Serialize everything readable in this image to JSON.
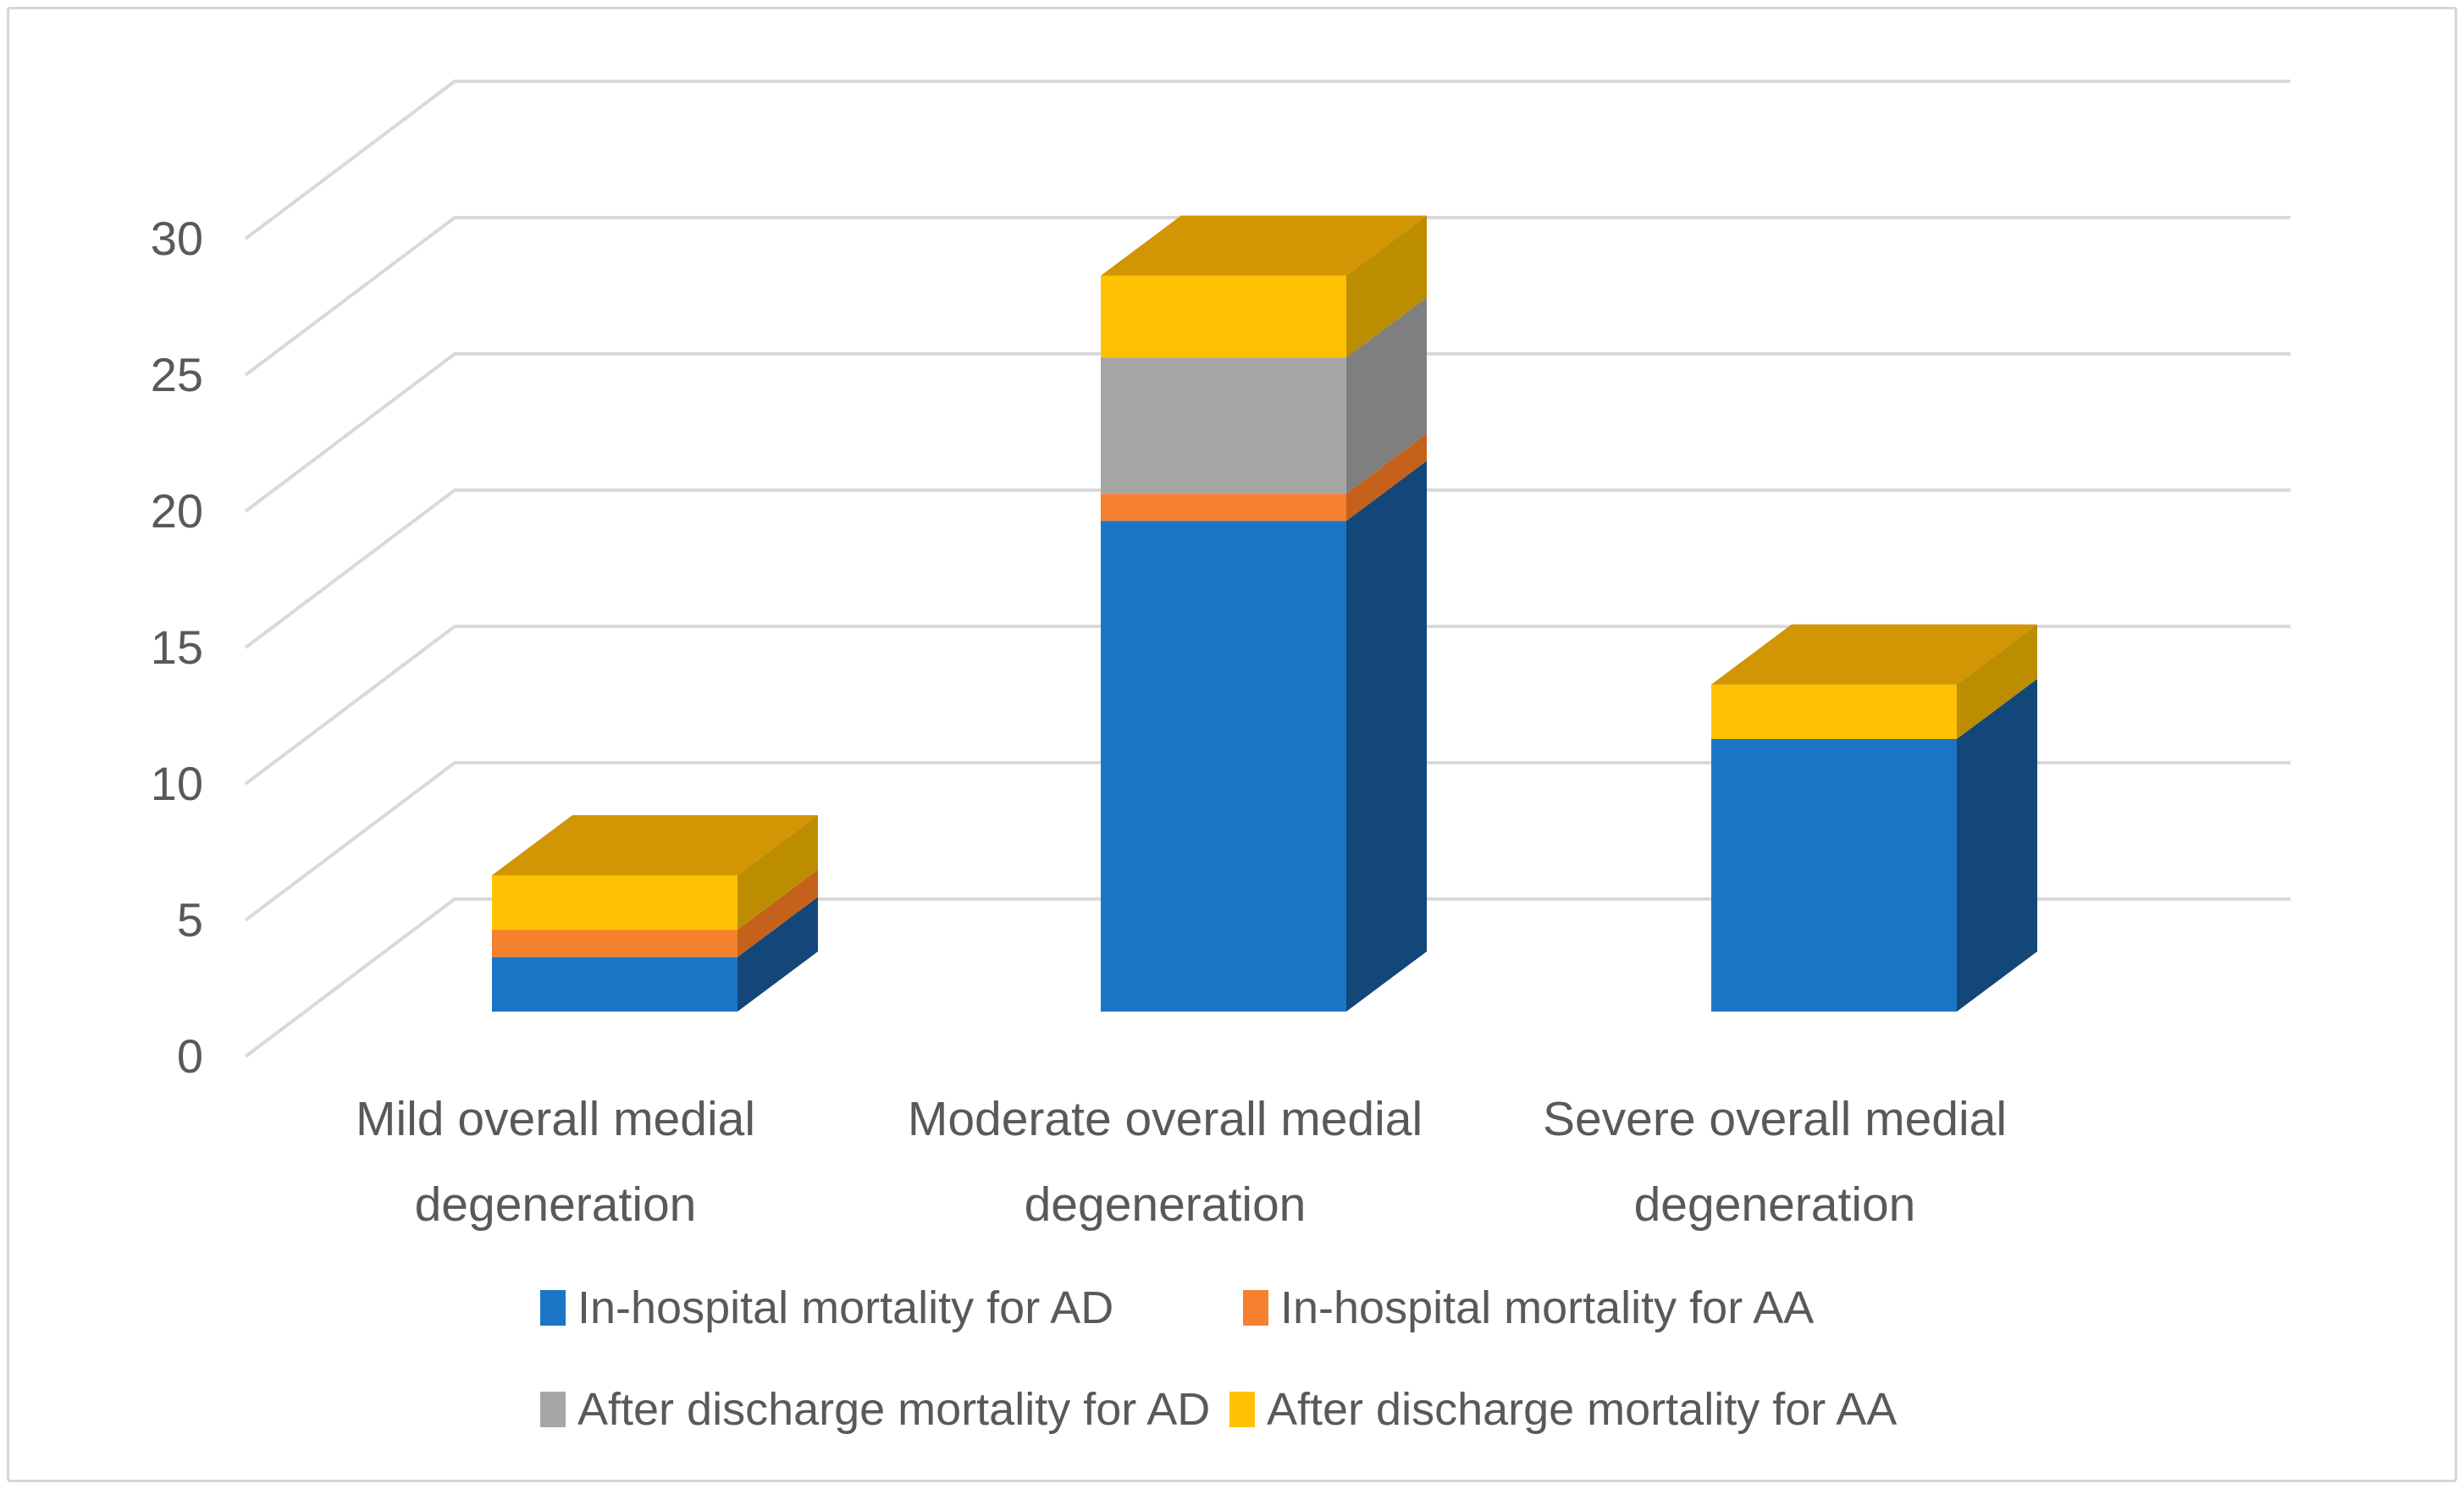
{
  "chart_data": {
    "type": "bar",
    "subtype": "3d-stacked-column",
    "categories": [
      "Mild overall medial degeneration",
      "Moderate overall medial degeneration",
      "Severe overall medial degeneration"
    ],
    "series": [
      {
        "name": "In-hospital mortality for AD",
        "values": [
          2,
          18,
          10
        ],
        "front": "#1B75C6",
        "side": "#134679",
        "top": "#1A5EA0"
      },
      {
        "name": "In-hospital mortality for AA",
        "values": [
          1,
          1,
          0
        ],
        "front": "#F5812E",
        "side": "#C5611A",
        "top": "#D86B20"
      },
      {
        "name": "After discharge mortality for AD",
        "values": [
          0,
          5,
          0
        ],
        "front": "#A6A6A6",
        "side": "#7F7F7F",
        "top": "#8F8F8F"
      },
      {
        "name": "After discharge mortality for AA",
        "values": [
          2,
          3,
          2
        ],
        "front": "#FFC103",
        "side": "#BC8D01",
        "top": "#D29503"
      }
    ],
    "totals": [
      5,
      27,
      12
    ],
    "ylim": [
      0,
      30
    ],
    "y_ticks": [
      0,
      5,
      10,
      15,
      20,
      25,
      30
    ],
    "y_tick_labels": [
      "0",
      "5",
      "10",
      "15",
      "20",
      "25",
      "30"
    ],
    "xlabel": "",
    "ylabel": "",
    "title": "",
    "grid": true,
    "legend_position": "bottom"
  },
  "colors": {
    "gridline": "#D9D9D9",
    "text": "#595959",
    "frame_border": "#D5D5D5",
    "background": "#FFFFFF"
  }
}
